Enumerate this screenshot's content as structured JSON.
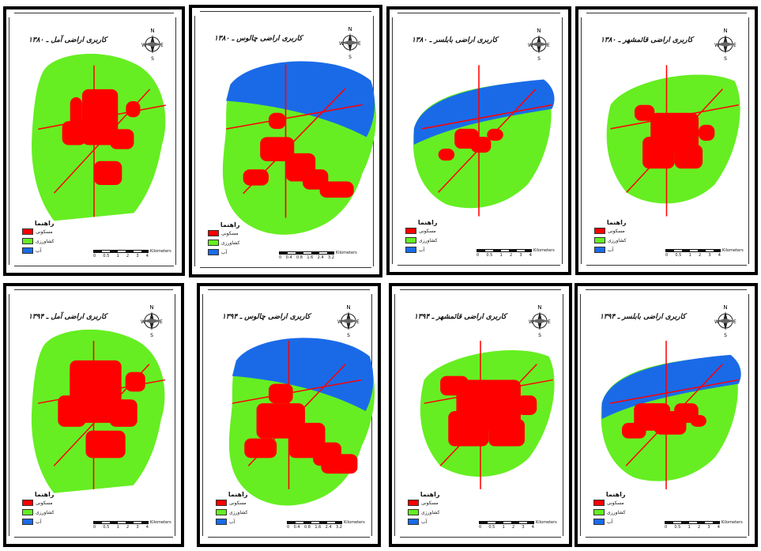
{
  "colors": {
    "residential": "#ff0000",
    "agriculture": "#66ee22",
    "water": "#1a6ae8",
    "frame": "#000000"
  },
  "icons": {
    "north_arrow": "compass-rose-icon"
  },
  "legend_labels": {
    "title": "راهنما",
    "residential": "مسکونی",
    "agriculture": "کشاورزی",
    "water": "آب"
  },
  "compass": {
    "n": "N",
    "s": "S",
    "e": "E",
    "w": "W"
  },
  "maps": [
    {
      "title": "کاربری اراضی آمل ـ ۱۳۸۰",
      "scale_ticks": [
        "0",
        "0.5",
        "1",
        "2",
        "3",
        "4"
      ],
      "scale_unit": "Kilometers"
    },
    {
      "title": "کاربری اراضی چالوس ـ ۱۳۸۰",
      "scale_ticks": [
        "0",
        "0.4",
        "0.8",
        "1.6",
        "2.4",
        "3.2"
      ],
      "scale_unit": "Kilometers"
    },
    {
      "title": "کاربری اراضی بابلسر ـ ۱۳۸۰",
      "scale_ticks": [
        "0",
        "0.5",
        "1",
        "2",
        "3",
        "4"
      ],
      "scale_unit": "Kilometers"
    },
    {
      "title": "کاربری اراضی قائمشهر ـ ۱۳۸۰",
      "scale_ticks": [
        "0",
        "0.5",
        "1",
        "2",
        "3",
        "4"
      ],
      "scale_unit": "Kilometers"
    },
    {
      "title": "کاربری اراضی آمل ـ ۱۳۹۴",
      "scale_ticks": [
        "0",
        "0.5",
        "1",
        "2",
        "3",
        "4"
      ],
      "scale_unit": "Kilometers"
    },
    {
      "title": "کاربری اراضی چالوس ـ ۱۳۹۴",
      "scale_ticks": [
        "0",
        "0.4",
        "0.8",
        "1.6",
        "2.4",
        "3.2"
      ],
      "scale_unit": "Kilometers"
    },
    {
      "title": "کاربری اراضی قائمشهر ـ ۱۳۹۴",
      "scale_ticks": [
        "0",
        "0.5",
        "1",
        "2",
        "3",
        "4"
      ],
      "scale_unit": "Kilometers"
    },
    {
      "title": "کاربری اراضی بابلسر ـ ۱۳۹۴",
      "scale_ticks": [
        "0",
        "0.5",
        "1",
        "2",
        "3",
        "4"
      ],
      "scale_unit": "Kilometers"
    }
  ]
}
